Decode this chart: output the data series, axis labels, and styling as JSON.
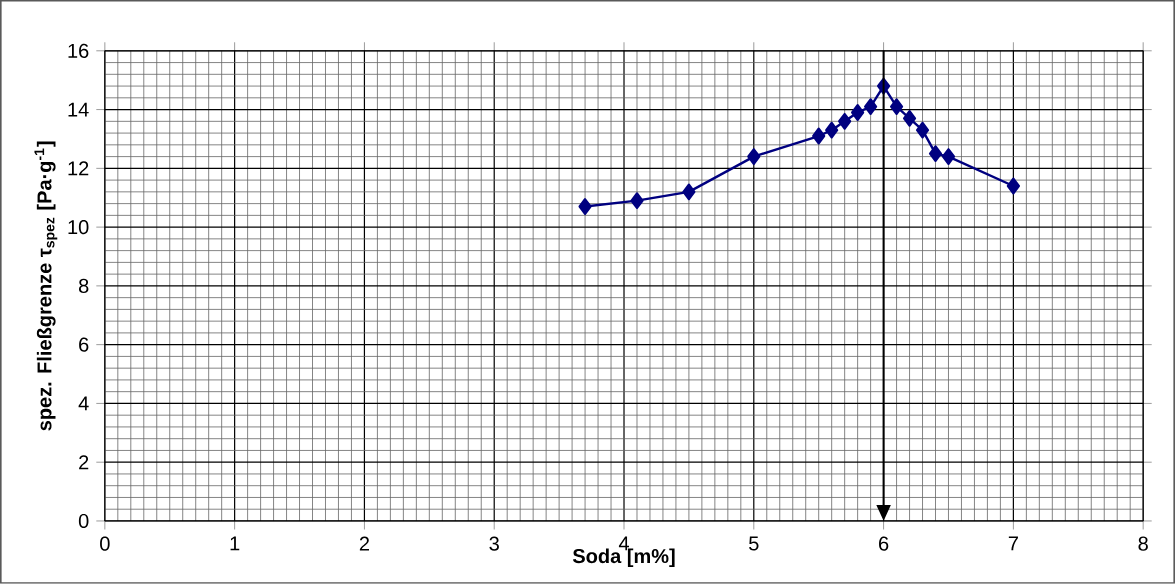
{
  "chart_data": {
    "type": "line",
    "xlabel": "Soda [m%]",
    "ylabel": "spez. Fließgrenze  τ$_{spez}$ [Pa·g$^{-1}$]",
    "x": [
      3.7,
      4.1,
      4.5,
      5.0,
      5.5,
      5.6,
      5.7,
      5.8,
      5.9,
      6.0,
      6.1,
      6.2,
      6.3,
      6.4,
      6.5,
      7.0
    ],
    "series": [
      {
        "color": "#000080",
        "values": [
          10.7,
          10.9,
          11.2,
          12.4,
          13.1,
          13.3,
          13.6,
          13.9,
          14.1,
          14.8,
          14.1,
          13.7,
          13.3,
          12.5,
          12.4,
          11.4
        ]
      }
    ],
    "xlim": [
      0,
      8
    ],
    "ylim": [
      0,
      16
    ],
    "xticks": [
      0,
      1,
      2,
      3,
      4,
      5,
      6,
      7,
      8
    ],
    "yticks": [
      0,
      2,
      4,
      6,
      8,
      10,
      12,
      14,
      16
    ],
    "grid": true,
    "marker": "diamond",
    "line_style": "solid",
    "ref_lines": [
      {
        "axis": "x",
        "value": 6,
        "color": "#000000"
      }
    ]
  }
}
